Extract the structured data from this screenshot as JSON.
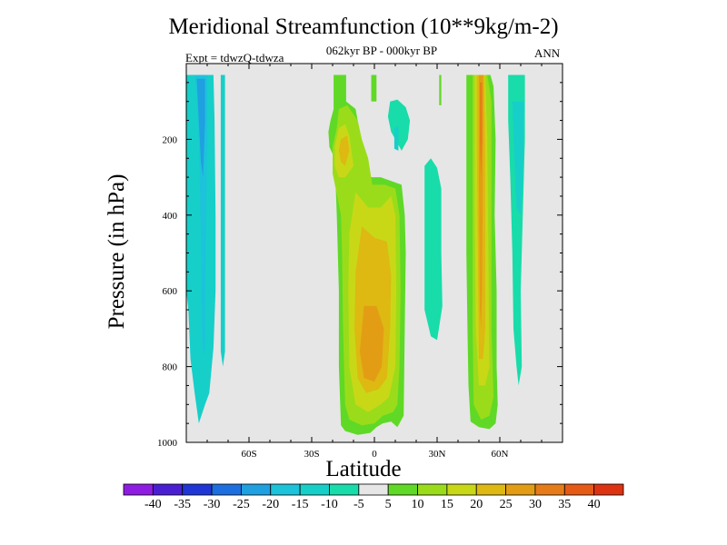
{
  "chart_data": {
    "type": "contour",
    "title": "Meridional Streamfunction (10**9kg/m-2)",
    "subtitle": "062kyr BP - 000kyr BP",
    "experiment": "Expt = tdwzQ-tdwza",
    "season": "ANN",
    "xlabel": "Latitude",
    "ylabel": "Pressure (in hPa)",
    "xlim": [
      -90,
      90
    ],
    "ylim": [
      1000,
      0
    ],
    "y_reversed": true,
    "x_ticks": [
      {
        "value": -60,
        "label": "60S"
      },
      {
        "value": -30,
        "label": "30S"
      },
      {
        "value": 0,
        "label": "0"
      },
      {
        "value": 30,
        "label": "30N"
      },
      {
        "value": 60,
        "label": "60N"
      }
    ],
    "y_ticks": [
      {
        "value": 200,
        "label": "200"
      },
      {
        "value": 400,
        "label": "400"
      },
      {
        "value": 600,
        "label": "600"
      },
      {
        "value": 800,
        "label": "800"
      },
      {
        "value": 1000,
        "label": "1000"
      }
    ],
    "background_color": "#e6e6e6",
    "colorbar": {
      "orientation": "horizontal",
      "labels": [
        "-40",
        "-35",
        "-30",
        "-25",
        "-20",
        "-15",
        "-10",
        "-5",
        "5",
        "10",
        "15",
        "20",
        "25",
        "30",
        "35",
        "40"
      ],
      "colors": [
        "#8f1de1",
        "#4a1fd2",
        "#2037d6",
        "#1d6fe0",
        "#1fa0e0",
        "#1cc3da",
        "#16cfc9",
        "#18dcaa",
        "#e6e6e6",
        "#5fd926",
        "#9bdc1a",
        "#c8d817",
        "#ddb912",
        "#e39d15",
        "#e67c17",
        "#e55a15",
        "#dd3312"
      ]
    },
    "regions": [
      {
        "level": -10,
        "color": "#16cfc9",
        "points": [
          [
            -90,
            30
          ],
          [
            -77,
            30
          ],
          [
            -76.5,
            150
          ],
          [
            -76,
            400
          ],
          [
            -76,
            600
          ],
          [
            -77,
            750
          ],
          [
            -79,
            870
          ],
          [
            -81,
            900
          ],
          [
            -84,
            950
          ],
          [
            -86,
            870
          ],
          [
            -88,
            780
          ],
          [
            -89,
            650
          ],
          [
            -90,
            600
          ]
        ]
      },
      {
        "level": -15,
        "color": "#1cc3da",
        "points": [
          [
            -86,
            30
          ],
          [
            -80,
            30
          ],
          [
            -80,
            200
          ],
          [
            -80.5,
            400
          ],
          [
            -81,
            600
          ],
          [
            -81,
            750
          ],
          [
            -82,
            770
          ],
          [
            -82.5,
            700
          ],
          [
            -83,
            450
          ],
          [
            -84,
            200
          ],
          [
            -85,
            80
          ]
        ]
      },
      {
        "level": -20,
        "color": "#1fa0e0",
        "points": [
          [
            -85,
            40
          ],
          [
            -81,
            40
          ],
          [
            -81,
            150
          ],
          [
            -82,
            300
          ],
          [
            -83,
            260
          ],
          [
            -84,
            150
          ]
        ]
      },
      {
        "level": -10,
        "color": "#16cfc9",
        "points": [
          [
            -73.5,
            30
          ],
          [
            -71.5,
            30
          ],
          [
            -71.5,
            200
          ],
          [
            -71.5,
            500
          ],
          [
            -71.5,
            760
          ],
          [
            -72.5,
            800
          ],
          [
            -73.5,
            760
          ],
          [
            -73.5,
            500
          ]
        ]
      },
      {
        "level": 5,
        "color": "#5fd926",
        "points": [
          [
            -19.5,
            30
          ],
          [
            -13.5,
            30
          ],
          [
            -13.5,
            100
          ],
          [
            -9,
            120
          ],
          [
            -7,
            180
          ],
          [
            -5,
            230
          ],
          [
            -3,
            300
          ],
          [
            3,
            300
          ],
          [
            13,
            320
          ],
          [
            14.5,
            400
          ],
          [
            15,
            500
          ],
          [
            14.5,
            700
          ],
          [
            14,
            930
          ],
          [
            11,
            960
          ],
          [
            8,
            945
          ],
          [
            4,
            950
          ],
          [
            1,
            960
          ],
          [
            -2,
            975
          ],
          [
            -8,
            980
          ],
          [
            -14,
            970
          ],
          [
            -16,
            955
          ],
          [
            -17,
            800
          ],
          [
            -17,
            600
          ],
          [
            -18,
            400
          ],
          [
            -19,
            250
          ],
          [
            -21.5,
            220
          ],
          [
            -22,
            180
          ],
          [
            -21,
            150
          ],
          [
            -19.5,
            120
          ],
          [
            -19.5,
            60
          ]
        ]
      },
      {
        "level": 10,
        "color": "#9bdc1a",
        "points": [
          [
            -17,
            120
          ],
          [
            -13,
            110
          ],
          [
            -8,
            150
          ],
          [
            -6,
            200
          ],
          [
            -3,
            250
          ],
          [
            -1,
            320
          ],
          [
            5,
            320
          ],
          [
            10,
            330
          ],
          [
            12,
            400
          ],
          [
            12.5,
            600
          ],
          [
            12,
            800
          ],
          [
            11,
            900
          ],
          [
            9,
            920
          ],
          [
            4,
            930
          ],
          [
            0,
            950
          ],
          [
            -6,
            955
          ],
          [
            -12,
            940
          ],
          [
            -14,
            900
          ],
          [
            -15,
            700
          ],
          [
            -15.5,
            500
          ],
          [
            -16,
            400
          ],
          [
            -18.5,
            330
          ],
          [
            -20,
            290
          ],
          [
            -20,
            220
          ],
          [
            -18,
            170
          ]
        ]
      },
      {
        "level": 15,
        "color": "#c8d817",
        "points": [
          [
            -17,
            170
          ],
          [
            -14,
            160
          ],
          [
            -12,
            190
          ],
          [
            -11,
            230
          ],
          [
            -10,
            270
          ],
          [
            -14,
            300
          ],
          [
            -17,
            300
          ],
          [
            -19,
            270
          ],
          [
            -19,
            220
          ]
        ]
      },
      {
        "level": 15,
        "color": "#c8d817",
        "points": [
          [
            -9,
            340
          ],
          [
            -3,
            380
          ],
          [
            3,
            380
          ],
          [
            8,
            350
          ],
          [
            10,
            400
          ],
          [
            10.5,
            600
          ],
          [
            10,
            800
          ],
          [
            7,
            880
          ],
          [
            3,
            900
          ],
          [
            -3,
            920
          ],
          [
            -9,
            900
          ],
          [
            -12,
            800
          ],
          [
            -12.5,
            600
          ],
          [
            -12,
            450
          ]
        ]
      },
      {
        "level": 20,
        "color": "#ddb912",
        "points": [
          [
            -16,
            200
          ],
          [
            -13,
            190
          ],
          [
            -12,
            230
          ],
          [
            -14,
            270
          ],
          [
            -16,
            260
          ],
          [
            -17,
            230
          ]
        ]
      },
      {
        "level": 20,
        "color": "#ddb912",
        "points": [
          [
            -6,
            430
          ],
          [
            0,
            460
          ],
          [
            6,
            470
          ],
          [
            8,
            560
          ],
          [
            7.5,
            700
          ],
          [
            6,
            830
          ],
          [
            2,
            860
          ],
          [
            -4,
            870
          ],
          [
            -8,
            830
          ],
          [
            -9.5,
            700
          ],
          [
            -9,
            550
          ]
        ]
      },
      {
        "level": 25,
        "color": "#e39d15",
        "points": [
          [
            -5,
            640
          ],
          [
            1,
            640
          ],
          [
            4.5,
            700
          ],
          [
            3.5,
            800
          ],
          [
            0,
            840
          ],
          [
            -5,
            830
          ],
          [
            -7,
            760
          ]
        ]
      },
      {
        "level": 5,
        "color": "#5fd926",
        "points": [
          [
            -1.5,
            30
          ],
          [
            1,
            30
          ],
          [
            1,
            100
          ],
          [
            -1.5,
            100
          ]
        ]
      },
      {
        "level": 5,
        "color": "#5fd926",
        "points": [
          [
            31,
            30
          ],
          [
            32,
            30
          ],
          [
            32,
            110
          ],
          [
            31,
            110
          ]
        ]
      },
      {
        "level": -5,
        "color": "#18dcaa",
        "points": [
          [
            7.5,
            100
          ],
          [
            11,
            95
          ],
          [
            15,
            115
          ],
          [
            17,
            150
          ],
          [
            16,
            200
          ],
          [
            13,
            230
          ],
          [
            10,
            200
          ],
          [
            8,
            180
          ],
          [
            6.5,
            140
          ]
        ]
      },
      {
        "level": -10,
        "color": "#16cfc9",
        "points": [
          [
            9.5,
            170
          ],
          [
            11.5,
            165
          ],
          [
            11.5,
            230
          ],
          [
            9.5,
            225
          ]
        ]
      },
      {
        "level": -5,
        "color": "#18dcaa",
        "points": [
          [
            24,
            270
          ],
          [
            27,
            250
          ],
          [
            30,
            275
          ],
          [
            32,
            330
          ],
          [
            32,
            500
          ],
          [
            32.5,
            640
          ],
          [
            30,
            730
          ],
          [
            27,
            720
          ],
          [
            24,
            650
          ],
          [
            24,
            450
          ]
        ]
      },
      {
        "level": 5,
        "color": "#5fd926",
        "points": [
          [
            44,
            30
          ],
          [
            53,
            30
          ],
          [
            55.5,
            30
          ],
          [
            57,
            60
          ],
          [
            58,
            200
          ],
          [
            57.5,
            400
          ],
          [
            58.5,
            600
          ],
          [
            58.5,
            800
          ],
          [
            59,
            900
          ],
          [
            58,
            950
          ],
          [
            55,
            965
          ],
          [
            50,
            960
          ],
          [
            46,
            945
          ],
          [
            45,
            850
          ],
          [
            44.5,
            700
          ],
          [
            44,
            500
          ],
          [
            44,
            200
          ]
        ]
      },
      {
        "level": 10,
        "color": "#9bdc1a",
        "points": [
          [
            47,
            30
          ],
          [
            54,
            30
          ],
          [
            56,
            100
          ],
          [
            56,
            400
          ],
          [
            56,
            700
          ],
          [
            57,
            880
          ],
          [
            55,
            930
          ],
          [
            51,
            940
          ],
          [
            47.5,
            900
          ],
          [
            47,
            700
          ],
          [
            47,
            400
          ],
          [
            47,
            100
          ]
        ]
      },
      {
        "level": 15,
        "color": "#c8d817",
        "points": [
          [
            48,
            30
          ],
          [
            53,
            30
          ],
          [
            54,
            200
          ],
          [
            54.5,
            500
          ],
          [
            55,
            800
          ],
          [
            53,
            850
          ],
          [
            50,
            850
          ],
          [
            48.5,
            700
          ],
          [
            48,
            400
          ]
        ]
      },
      {
        "level": 20,
        "color": "#ddb912",
        "points": [
          [
            49,
            30
          ],
          [
            52.5,
            30
          ],
          [
            53,
            200
          ],
          [
            53,
            500
          ],
          [
            53,
            700
          ],
          [
            52,
            780
          ],
          [
            50,
            780
          ],
          [
            49.5,
            500
          ],
          [
            49,
            200
          ]
        ]
      },
      {
        "level": 25,
        "color": "#e39d15",
        "points": [
          [
            50,
            30
          ],
          [
            52,
            30
          ],
          [
            52,
            200
          ],
          [
            51.5,
            600
          ],
          [
            51,
            700
          ],
          [
            50.5,
            650
          ],
          [
            50,
            300
          ]
        ]
      },
      {
        "level": 30,
        "color": "#e67c17",
        "points": [
          [
            50.5,
            50
          ],
          [
            51.5,
            50
          ],
          [
            51.5,
            200
          ],
          [
            51,
            300
          ],
          [
            50.5,
            200
          ]
        ]
      },
      {
        "level": -5,
        "color": "#18dcaa",
        "points": [
          [
            64,
            30
          ],
          [
            72,
            30
          ],
          [
            72,
            200
          ],
          [
            71,
            400
          ],
          [
            70,
            600
          ],
          [
            70.5,
            800
          ],
          [
            69,
            850
          ],
          [
            68,
            800
          ],
          [
            66.5,
            700
          ],
          [
            66,
            500
          ],
          [
            65,
            300
          ],
          [
            64,
            150
          ]
        ]
      },
      {
        "level": -10,
        "color": "#16cfc9",
        "points": [
          [
            66,
            100
          ],
          [
            71.5,
            100
          ],
          [
            71,
            300
          ],
          [
            70,
            400
          ],
          [
            68,
            380
          ],
          [
            67,
            250
          ]
        ]
      }
    ]
  }
}
